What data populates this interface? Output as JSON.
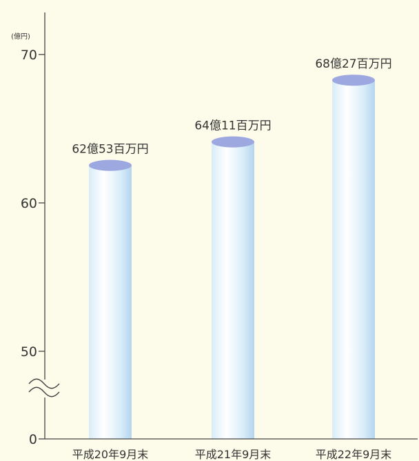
{
  "chart_data": {
    "type": "bar",
    "title": "",
    "xlabel": "",
    "ylabel": "",
    "unit": "(億円)",
    "axis_break": true,
    "categories": [
      "平成20年9月末",
      "平成21年9月末",
      "平成22年9月末"
    ],
    "values": [
      62.53,
      64.11,
      68.27
    ],
    "value_labels": [
      "62億53百万円",
      "64億11百万円",
      "68億27百万円"
    ],
    "y_ticks": [
      {
        "value": 0,
        "label": "0"
      },
      {
        "value": 50,
        "label": "50"
      },
      {
        "value": 60,
        "label": "60"
      },
      {
        "value": 70,
        "label": "70"
      }
    ],
    "ylim_broken": [
      50,
      70
    ],
    "grid": false,
    "colors": {
      "background": "#fdfbe9",
      "bar_light": "#ffffff",
      "bar_mid": "#d8ecf8",
      "bar_dark": "#b4d4ee",
      "bar_top": "#9da7e0",
      "axis": "#444444"
    }
  }
}
